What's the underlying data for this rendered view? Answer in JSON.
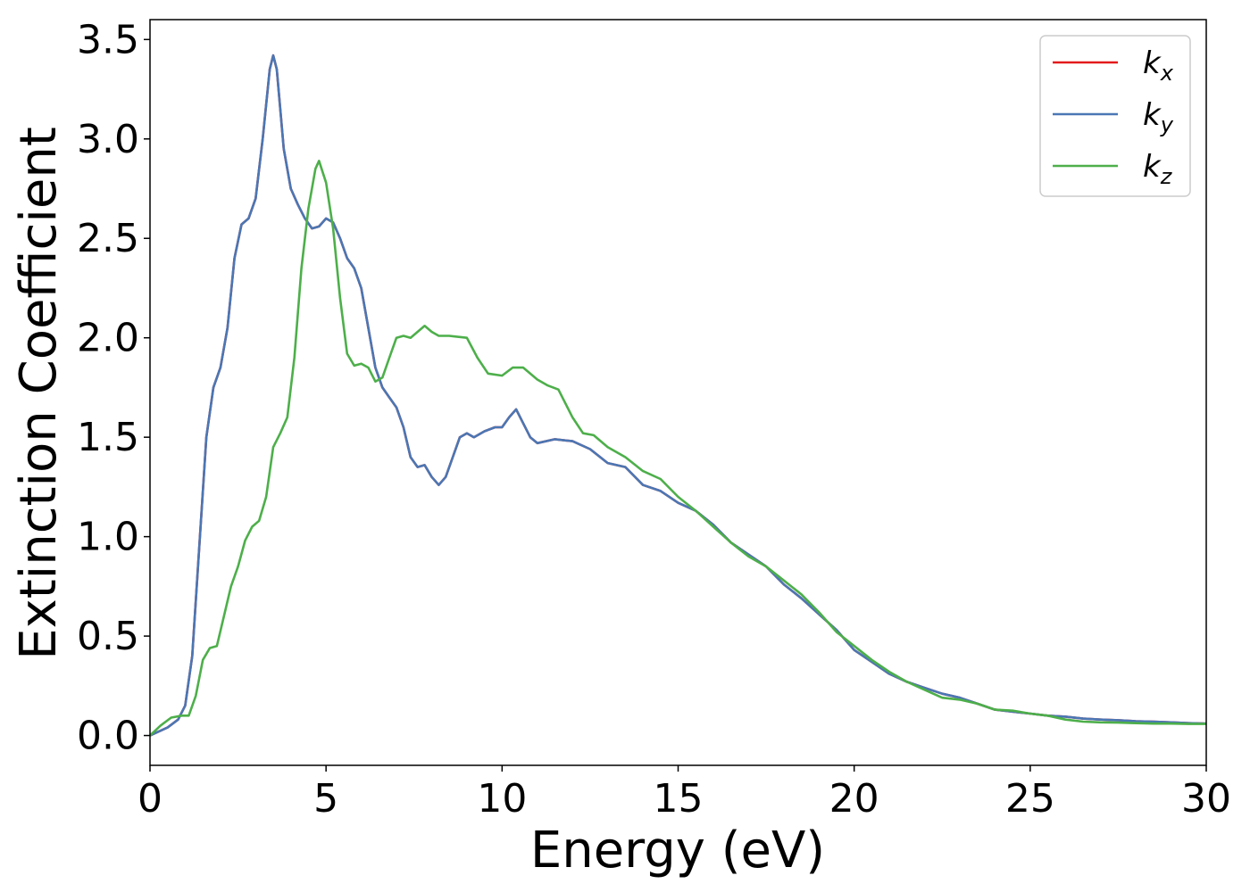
{
  "chart_data": {
    "type": "line",
    "title": "",
    "xlabel": "Energy (eV)",
    "ylabel": "Extinction Coefficient",
    "xlim": [
      0,
      30
    ],
    "ylim": [
      -0.15,
      3.6
    ],
    "xticks": [
      0,
      5,
      10,
      15,
      20,
      25,
      30
    ],
    "xtick_labels": [
      "0",
      "5",
      "10",
      "15",
      "20",
      "25",
      "30"
    ],
    "yticks": [
      0.0,
      0.5,
      1.0,
      1.5,
      2.0,
      2.5,
      3.0,
      3.5
    ],
    "ytick_labels": [
      "0.0",
      "0.5",
      "1.0",
      "1.5",
      "2.0",
      "2.5",
      "3.0",
      "3.5"
    ],
    "grid": false,
    "legend_position": "top-right",
    "series": [
      {
        "name": "k_x",
        "label_main": "k",
        "label_sub": "x",
        "color": "#e41a1c",
        "points": [
          [
            0,
            0
          ],
          [
            0.5,
            0.04
          ],
          [
            0.8,
            0.08
          ],
          [
            1.0,
            0.15
          ],
          [
            1.2,
            0.4
          ],
          [
            1.4,
            0.95
          ],
          [
            1.6,
            1.5
          ],
          [
            1.8,
            1.75
          ],
          [
            2.0,
            1.85
          ],
          [
            2.2,
            2.05
          ],
          [
            2.4,
            2.4
          ],
          [
            2.6,
            2.57
          ],
          [
            2.8,
            2.6
          ],
          [
            3.0,
            2.7
          ],
          [
            3.2,
            3.0
          ],
          [
            3.4,
            3.35
          ],
          [
            3.5,
            3.42
          ],
          [
            3.6,
            3.35
          ],
          [
            3.8,
            2.95
          ],
          [
            4.0,
            2.75
          ],
          [
            4.2,
            2.67
          ],
          [
            4.4,
            2.6
          ],
          [
            4.6,
            2.55
          ],
          [
            4.8,
            2.56
          ],
          [
            5.0,
            2.6
          ],
          [
            5.2,
            2.58
          ],
          [
            5.4,
            2.5
          ],
          [
            5.6,
            2.4
          ],
          [
            5.8,
            2.35
          ],
          [
            6.0,
            2.25
          ],
          [
            6.2,
            2.05
          ],
          [
            6.4,
            1.85
          ],
          [
            6.6,
            1.75
          ],
          [
            6.8,
            1.7
          ],
          [
            7.0,
            1.65
          ],
          [
            7.2,
            1.55
          ],
          [
            7.4,
            1.4
          ],
          [
            7.6,
            1.35
          ],
          [
            7.8,
            1.36
          ],
          [
            8.0,
            1.3
          ],
          [
            8.2,
            1.26
          ],
          [
            8.4,
            1.3
          ],
          [
            8.6,
            1.4
          ],
          [
            8.8,
            1.5
          ],
          [
            9.0,
            1.52
          ],
          [
            9.2,
            1.5
          ],
          [
            9.5,
            1.53
          ],
          [
            9.8,
            1.55
          ],
          [
            10.0,
            1.55
          ],
          [
            10.2,
            1.6
          ],
          [
            10.4,
            1.64
          ],
          [
            10.6,
            1.57
          ],
          [
            10.8,
            1.5
          ],
          [
            11.0,
            1.47
          ],
          [
            11.5,
            1.49
          ],
          [
            12.0,
            1.48
          ],
          [
            12.5,
            1.44
          ],
          [
            13.0,
            1.37
          ],
          [
            13.5,
            1.35
          ],
          [
            14.0,
            1.26
          ],
          [
            14.5,
            1.23
          ],
          [
            15.0,
            1.17
          ],
          [
            15.5,
            1.13
          ],
          [
            16.0,
            1.06
          ],
          [
            16.5,
            0.97
          ],
          [
            17.0,
            0.91
          ],
          [
            17.5,
            0.85
          ],
          [
            18.0,
            0.76
          ],
          [
            18.5,
            0.69
          ],
          [
            19.0,
            0.61
          ],
          [
            19.5,
            0.53
          ],
          [
            20.0,
            0.43
          ],
          [
            20.5,
            0.37
          ],
          [
            21.0,
            0.31
          ],
          [
            21.5,
            0.27
          ],
          [
            22.0,
            0.24
          ],
          [
            22.5,
            0.21
          ],
          [
            23.0,
            0.19
          ],
          [
            23.5,
            0.16
          ],
          [
            24.0,
            0.13
          ],
          [
            24.5,
            0.12
          ],
          [
            25.0,
            0.11
          ],
          [
            25.5,
            0.1
          ],
          [
            26.0,
            0.095
          ],
          [
            26.5,
            0.085
          ],
          [
            27.0,
            0.08
          ],
          [
            27.5,
            0.077
          ],
          [
            28.0,
            0.072
          ],
          [
            28.5,
            0.07
          ],
          [
            29.0,
            0.066
          ],
          [
            29.5,
            0.062
          ],
          [
            30.0,
            0.06
          ]
        ]
      },
      {
        "name": "k_y",
        "label_main": "k",
        "label_sub": "y",
        "color": "#4a77b4",
        "points": [
          [
            0,
            0
          ],
          [
            0.5,
            0.04
          ],
          [
            0.8,
            0.08
          ],
          [
            1.0,
            0.15
          ],
          [
            1.2,
            0.4
          ],
          [
            1.4,
            0.95
          ],
          [
            1.6,
            1.5
          ],
          [
            1.8,
            1.75
          ],
          [
            2.0,
            1.85
          ],
          [
            2.2,
            2.05
          ],
          [
            2.4,
            2.4
          ],
          [
            2.6,
            2.57
          ],
          [
            2.8,
            2.6
          ],
          [
            3.0,
            2.7
          ],
          [
            3.2,
            3.0
          ],
          [
            3.4,
            3.35
          ],
          [
            3.5,
            3.42
          ],
          [
            3.6,
            3.35
          ],
          [
            3.8,
            2.95
          ],
          [
            4.0,
            2.75
          ],
          [
            4.2,
            2.67
          ],
          [
            4.4,
            2.6
          ],
          [
            4.6,
            2.55
          ],
          [
            4.8,
            2.56
          ],
          [
            5.0,
            2.6
          ],
          [
            5.2,
            2.58
          ],
          [
            5.4,
            2.5
          ],
          [
            5.6,
            2.4
          ],
          [
            5.8,
            2.35
          ],
          [
            6.0,
            2.25
          ],
          [
            6.2,
            2.05
          ],
          [
            6.4,
            1.85
          ],
          [
            6.6,
            1.75
          ],
          [
            6.8,
            1.7
          ],
          [
            7.0,
            1.65
          ],
          [
            7.2,
            1.55
          ],
          [
            7.4,
            1.4
          ],
          [
            7.6,
            1.35
          ],
          [
            7.8,
            1.36
          ],
          [
            8.0,
            1.3
          ],
          [
            8.2,
            1.26
          ],
          [
            8.4,
            1.3
          ],
          [
            8.6,
            1.4
          ],
          [
            8.8,
            1.5
          ],
          [
            9.0,
            1.52
          ],
          [
            9.2,
            1.5
          ],
          [
            9.5,
            1.53
          ],
          [
            9.8,
            1.55
          ],
          [
            10.0,
            1.55
          ],
          [
            10.2,
            1.6
          ],
          [
            10.4,
            1.64
          ],
          [
            10.6,
            1.57
          ],
          [
            10.8,
            1.5
          ],
          [
            11.0,
            1.47
          ],
          [
            11.5,
            1.49
          ],
          [
            12.0,
            1.48
          ],
          [
            12.5,
            1.44
          ],
          [
            13.0,
            1.37
          ],
          [
            13.5,
            1.35
          ],
          [
            14.0,
            1.26
          ],
          [
            14.5,
            1.23
          ],
          [
            15.0,
            1.17
          ],
          [
            15.5,
            1.13
          ],
          [
            16.0,
            1.06
          ],
          [
            16.5,
            0.97
          ],
          [
            17.0,
            0.91
          ],
          [
            17.5,
            0.85
          ],
          [
            18.0,
            0.76
          ],
          [
            18.5,
            0.69
          ],
          [
            19.0,
            0.61
          ],
          [
            19.5,
            0.53
          ],
          [
            20.0,
            0.43
          ],
          [
            20.5,
            0.37
          ],
          [
            21.0,
            0.31
          ],
          [
            21.5,
            0.27
          ],
          [
            22.0,
            0.24
          ],
          [
            22.5,
            0.21
          ],
          [
            23.0,
            0.19
          ],
          [
            23.5,
            0.16
          ],
          [
            24.0,
            0.13
          ],
          [
            24.5,
            0.12
          ],
          [
            25.0,
            0.11
          ],
          [
            25.5,
            0.1
          ],
          [
            26.0,
            0.095
          ],
          [
            26.5,
            0.085
          ],
          [
            27.0,
            0.08
          ],
          [
            27.5,
            0.077
          ],
          [
            28.0,
            0.072
          ],
          [
            28.5,
            0.07
          ],
          [
            29.0,
            0.066
          ],
          [
            29.5,
            0.062
          ],
          [
            30.0,
            0.06
          ]
        ]
      },
      {
        "name": "k_z",
        "label_main": "k",
        "label_sub": "z",
        "color": "#4daf4a",
        "points": [
          [
            0,
            0
          ],
          [
            0.3,
            0.05
          ],
          [
            0.6,
            0.09
          ],
          [
            0.9,
            0.1
          ],
          [
            1.1,
            0.1
          ],
          [
            1.3,
            0.2
          ],
          [
            1.5,
            0.38
          ],
          [
            1.7,
            0.44
          ],
          [
            1.9,
            0.45
          ],
          [
            2.1,
            0.6
          ],
          [
            2.3,
            0.75
          ],
          [
            2.5,
            0.85
          ],
          [
            2.7,
            0.98
          ],
          [
            2.9,
            1.05
          ],
          [
            3.1,
            1.08
          ],
          [
            3.3,
            1.2
          ],
          [
            3.5,
            1.45
          ],
          [
            3.7,
            1.52
          ],
          [
            3.9,
            1.6
          ],
          [
            4.1,
            1.9
          ],
          [
            4.3,
            2.35
          ],
          [
            4.5,
            2.65
          ],
          [
            4.7,
            2.85
          ],
          [
            4.8,
            2.89
          ],
          [
            5.0,
            2.78
          ],
          [
            5.2,
            2.55
          ],
          [
            5.4,
            2.2
          ],
          [
            5.6,
            1.92
          ],
          [
            5.8,
            1.86
          ],
          [
            6.0,
            1.87
          ],
          [
            6.2,
            1.85
          ],
          [
            6.4,
            1.78
          ],
          [
            6.6,
            1.8
          ],
          [
            6.8,
            1.9
          ],
          [
            7.0,
            2.0
          ],
          [
            7.2,
            2.01
          ],
          [
            7.4,
            2.0
          ],
          [
            7.6,
            2.03
          ],
          [
            7.8,
            2.06
          ],
          [
            8.0,
            2.03
          ],
          [
            8.2,
            2.01
          ],
          [
            8.5,
            2.01
          ],
          [
            9.0,
            2.0
          ],
          [
            9.3,
            1.9
          ],
          [
            9.6,
            1.82
          ],
          [
            10.0,
            1.81
          ],
          [
            10.3,
            1.85
          ],
          [
            10.6,
            1.85
          ],
          [
            11.0,
            1.79
          ],
          [
            11.3,
            1.76
          ],
          [
            11.6,
            1.74
          ],
          [
            12.0,
            1.6
          ],
          [
            12.3,
            1.52
          ],
          [
            12.6,
            1.51
          ],
          [
            13.0,
            1.45
          ],
          [
            13.5,
            1.4
          ],
          [
            14.0,
            1.33
          ],
          [
            14.5,
            1.29
          ],
          [
            15.0,
            1.2
          ],
          [
            15.5,
            1.13
          ],
          [
            16.0,
            1.05
          ],
          [
            16.5,
            0.97
          ],
          [
            17.0,
            0.9
          ],
          [
            17.5,
            0.85
          ],
          [
            18.0,
            0.78
          ],
          [
            18.5,
            0.71
          ],
          [
            19.0,
            0.62
          ],
          [
            19.5,
            0.52
          ],
          [
            20.0,
            0.45
          ],
          [
            20.5,
            0.38
          ],
          [
            21.0,
            0.32
          ],
          [
            21.5,
            0.27
          ],
          [
            22.0,
            0.23
          ],
          [
            22.5,
            0.19
          ],
          [
            23.0,
            0.18
          ],
          [
            23.5,
            0.16
          ],
          [
            24.0,
            0.13
          ],
          [
            24.5,
            0.125
          ],
          [
            25.0,
            0.11
          ],
          [
            25.5,
            0.1
          ],
          [
            26.0,
            0.08
          ],
          [
            26.5,
            0.07
          ],
          [
            27.0,
            0.066
          ],
          [
            27.5,
            0.065
          ],
          [
            28.0,
            0.062
          ],
          [
            28.5,
            0.06
          ],
          [
            29.0,
            0.06
          ],
          [
            29.5,
            0.058
          ],
          [
            30.0,
            0.058
          ]
        ]
      }
    ]
  }
}
